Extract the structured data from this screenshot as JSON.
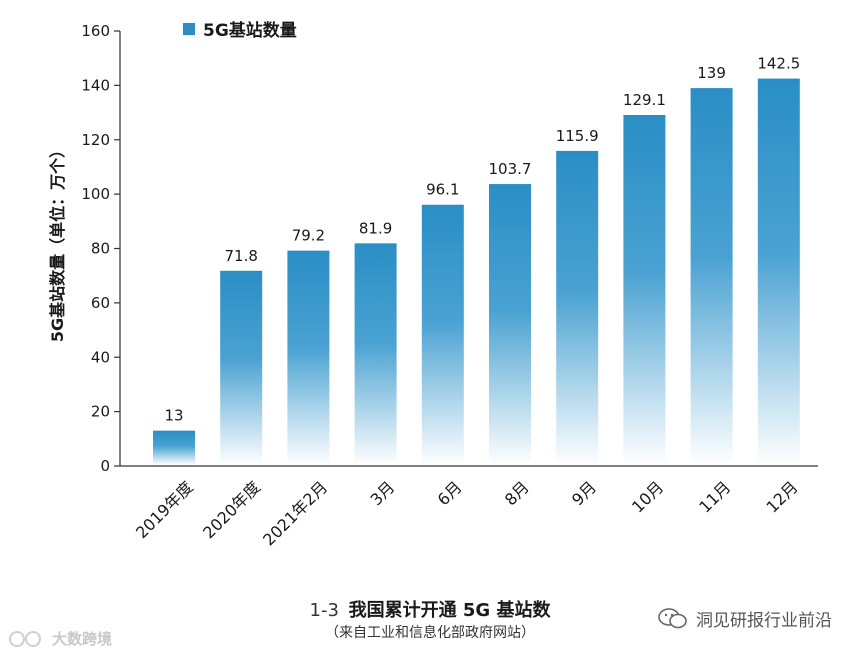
{
  "chart_data": {
    "type": "bar",
    "categories": [
      "2019年度",
      "2020年度",
      "2021年2月",
      "3月",
      "6月",
      "8月",
      "9月",
      "10月",
      "11月",
      "12月"
    ],
    "series": [
      {
        "name": "5G基站数量",
        "values": [
          13,
          71.8,
          79.2,
          81.9,
          96.1,
          103.7,
          115.9,
          129.1,
          139,
          142.5
        ]
      }
    ],
    "value_labels": [
      "13",
      "71.8",
      "79.2",
      "81.9",
      "96.1",
      "103.7",
      "115.9",
      "129.1",
      "139",
      "142.5"
    ],
    "ylabel": "5G基站数量（单位：万个）",
    "xlabel": "",
    "ylim": [
      0,
      160
    ],
    "yticks": [
      0,
      20,
      40,
      60,
      80,
      100,
      120,
      140,
      160
    ],
    "legend": {
      "label": "5G基站数量",
      "position": "top-left"
    },
    "bar_color": "#2a8ec5",
    "grid": false
  },
  "caption": {
    "number": "1-3",
    "title": "我国累计开通 5G 基站数",
    "source": "（来自工业和信息化部政府网站）"
  },
  "watermarks": {
    "left": "大数跨境",
    "right": "洞见研报行业前沿"
  }
}
